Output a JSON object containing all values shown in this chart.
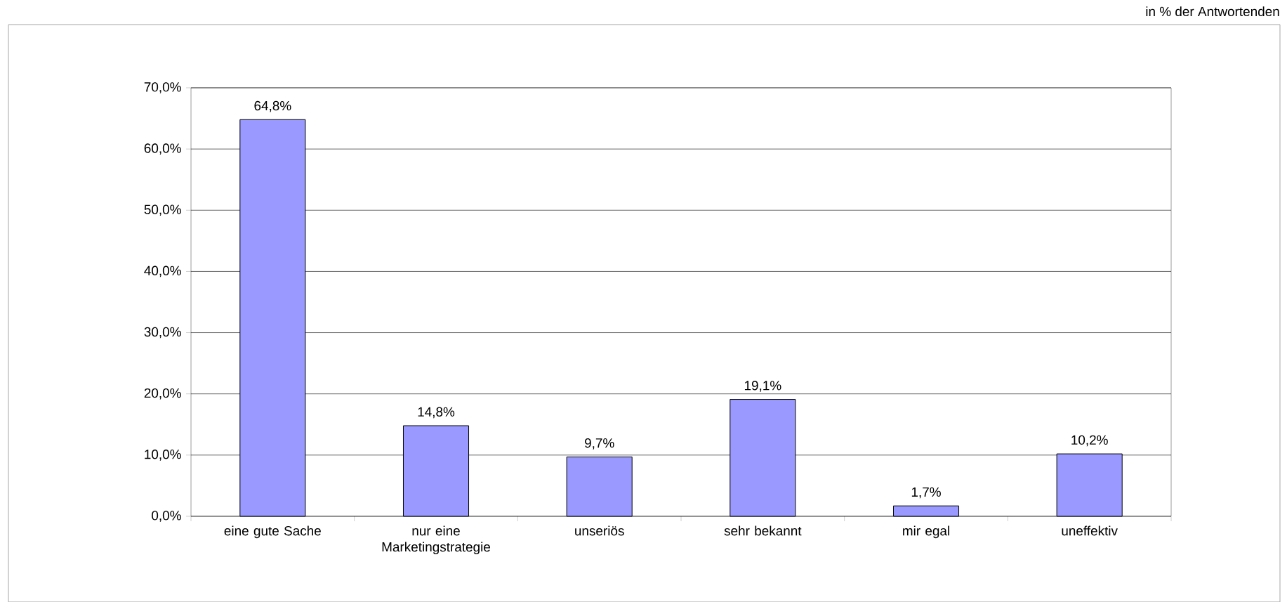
{
  "chart_data": {
    "type": "bar",
    "annotations": [
      "in % der Antwortenden"
    ],
    "categories": [
      "eine gute Sache",
      "nur eine Marketingstrategie",
      "unseriös",
      "sehr bekannt",
      "mir egal",
      "uneffektiv"
    ],
    "values": [
      64.8,
      14.8,
      9.7,
      19.1,
      1.7,
      10.2
    ],
    "value_labels": [
      "64,8%",
      "14,8%",
      "9,7%",
      "19,1%",
      "1,7%",
      "10,2%"
    ],
    "color": "#9999ff",
    "ylim": [
      0,
      70
    ],
    "yticks": [
      {
        "value": 0,
        "label": "0,0%"
      },
      {
        "value": 10,
        "label": "10,0%"
      },
      {
        "value": 20,
        "label": "20,0%"
      },
      {
        "value": 30,
        "label": "30,0%"
      },
      {
        "value": 40,
        "label": "40,0%"
      },
      {
        "value": 50,
        "label": "50,0%"
      },
      {
        "value": 60,
        "label": "60,0%"
      },
      {
        "value": 70,
        "label": "70,0%"
      }
    ],
    "grid": "y"
  }
}
